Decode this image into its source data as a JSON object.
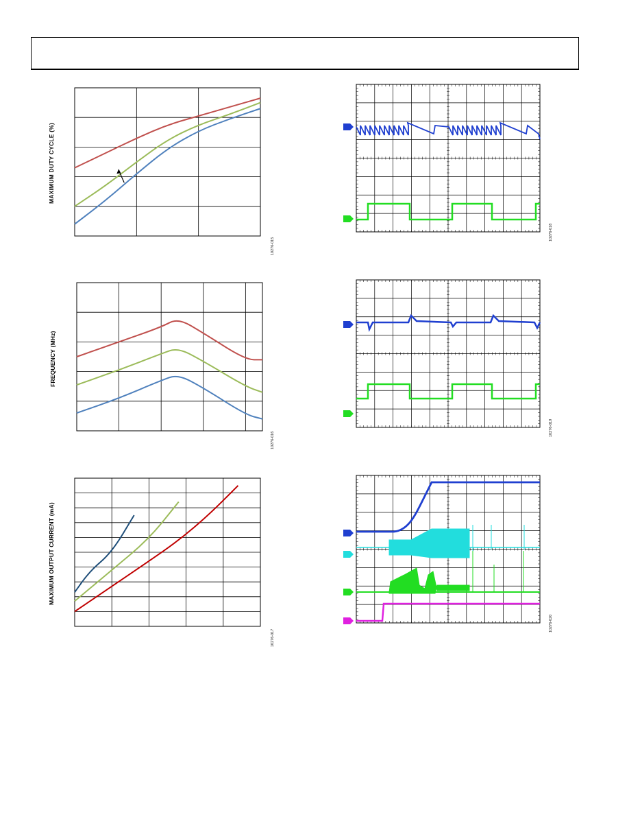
{
  "page": {
    "header_box": ""
  },
  "figures": [
    {
      "id_label": "10276-015",
      "ylabel": "MAXIMUM DUTY CYCLE (%)",
      "chart_data": {
        "type": "line",
        "xlim": [
          0,
          3
        ],
        "ylim": [
          0,
          5
        ],
        "x_divisions": 3,
        "y_divisions": 5,
        "series": [
          {
            "color": "#c0504d",
            "points": [
              [
                0,
                2.3
              ],
              [
                0.5,
                2.8
              ],
              [
                1,
                3.3
              ],
              [
                1.5,
                3.75
              ],
              [
                2,
                4.05
              ],
              [
                2.5,
                4.35
              ],
              [
                3,
                4.65
              ]
            ]
          },
          {
            "color": "#9bbb59",
            "points": [
              [
                0,
                1
              ],
              [
                0.5,
                1.7
              ],
              [
                1,
                2.5
              ],
              [
                1.5,
                3.25
              ],
              [
                2,
                3.75
              ],
              [
                2.5,
                4.1
              ],
              [
                3,
                4.5
              ]
            ]
          },
          {
            "color": "#4f81bd",
            "points": [
              [
                0,
                0.4
              ],
              [
                0.5,
                1.2
              ],
              [
                1,
                2.1
              ],
              [
                1.5,
                2.95
              ],
              [
                2,
                3.55
              ],
              [
                2.5,
                3.95
              ],
              [
                3,
                4.3
              ]
            ]
          }
        ],
        "annotation_arrow": true
      }
    },
    {
      "id_label": "10276-016",
      "ylabel": "FREQUENCY (MHz)",
      "chart_data": {
        "type": "line",
        "xlim": [
          0,
          4.4
        ],
        "ylim": [
          0,
          5
        ],
        "x_divisions": 4.4,
        "y_divisions": 5,
        "series": [
          {
            "color": "#c0504d",
            "points": [
              [
                0,
                2.5
              ],
              [
                1,
                3
              ],
              [
                2,
                3.5
              ],
              [
                2.4,
                3.8
              ],
              [
                3,
                3.3
              ],
              [
                4,
                2.4
              ],
              [
                4.4,
                2.4
              ]
            ]
          },
          {
            "color": "#9bbb59",
            "points": [
              [
                0,
                1.55
              ],
              [
                1,
                2.05
              ],
              [
                2,
                2.6
              ],
              [
                2.4,
                2.8
              ],
              [
                3,
                2.35
              ],
              [
                4,
                1.5
              ],
              [
                4.4,
                1.3
              ]
            ]
          },
          {
            "color": "#4f81bd",
            "points": [
              [
                0,
                0.6
              ],
              [
                1,
                1.1
              ],
              [
                2,
                1.7
              ],
              [
                2.4,
                1.9
              ],
              [
                3,
                1.45
              ],
              [
                4,
                0.55
              ],
              [
                4.4,
                0.4
              ]
            ]
          }
        ]
      }
    },
    {
      "id_label": "10276-017",
      "ylabel": "MAXIMUM OUTPUT CURRENT (mA)",
      "chart_data": {
        "type": "line",
        "xlim": [
          0,
          5
        ],
        "ylim": [
          0,
          10
        ],
        "x_divisions": 5,
        "y_divisions": 10,
        "series": [
          {
            "color": "#1f4e79",
            "points": [
              [
                0,
                2.3
              ],
              [
                0.4,
                3.7
              ],
              [
                1,
                5
              ],
              [
                1.6,
                7.5
              ]
            ]
          },
          {
            "color": "#9bbb59",
            "points": [
              [
                0,
                1.7
              ],
              [
                1,
                3.8
              ],
              [
                2,
                5.9
              ],
              [
                2.8,
                8.4
              ]
            ]
          },
          {
            "color": "#c00000",
            "points": [
              [
                0,
                1
              ],
              [
                1,
                2.7
              ],
              [
                2,
                4.4
              ],
              [
                2.8,
                5.8
              ],
              [
                3.6,
                7.5
              ],
              [
                4.4,
                9.5
              ]
            ]
          }
        ]
      }
    },
    {
      "id_label": "10276-018",
      "chart_data": {
        "type": "line",
        "markers": [
          {
            "color": "#1f3fd0"
          },
          {
            "color": "#22dd22"
          }
        ]
      }
    },
    {
      "id_label": "10276-019",
      "chart_data": {
        "type": "line",
        "markers": [
          {
            "color": "#1f3fd0"
          },
          {
            "color": "#22dd22"
          }
        ]
      }
    },
    {
      "id_label": "10276-020",
      "chart_data": {
        "type": "line",
        "markers": [
          {
            "color": "#1f3fd0"
          },
          {
            "color": "#22dddd"
          },
          {
            "color": "#22dd22"
          },
          {
            "color": "#e020e0"
          }
        ]
      }
    }
  ]
}
